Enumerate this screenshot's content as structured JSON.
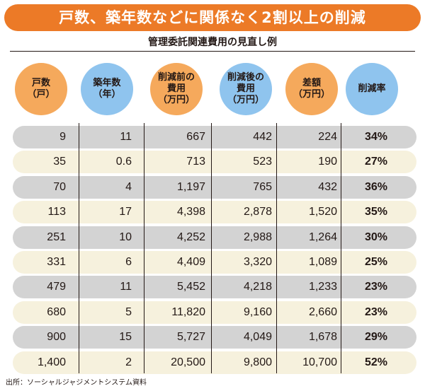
{
  "title": "戸数、築年数などに関係なく2割以上の削減",
  "subtitle": "管理委託関連費用の見直し例",
  "source": "出所：ソーシャルジャジメントシステム資料",
  "colors": {
    "accent": "#ec7a27",
    "orange_circle": "#f5a95c",
    "blue_circle": "#8fc4ee",
    "row_gray": "#d3d3d3",
    "row_cream": "#f6f1dd"
  },
  "chart_data": {
    "type": "table",
    "title": "戸数、築年数などに関係なく2割以上の削減",
    "subtitle": "管理委託関連費用の見直し例",
    "columns": [
      "戸数\n（戸）",
      "築年数\n（年）",
      "削減前の\n費用\n（万円）",
      "削減後の\n費用\n（万円）",
      "差額\n（万円）",
      "削減率"
    ],
    "rows": [
      [
        "9",
        "11",
        "667",
        "442",
        "224",
        "34%"
      ],
      [
        "35",
        "0.6",
        "713",
        "523",
        "190",
        "27%"
      ],
      [
        "70",
        "4",
        "1,197",
        "765",
        "432",
        "36%"
      ],
      [
        "113",
        "17",
        "4,398",
        "2,878",
        "1,520",
        "35%"
      ],
      [
        "251",
        "10",
        "4,252",
        "2,988",
        "1,264",
        "30%"
      ],
      [
        "331",
        "6",
        "4,409",
        "3,320",
        "1,089",
        "25%"
      ],
      [
        "479",
        "11",
        "5,452",
        "4,218",
        "1,233",
        "23%"
      ],
      [
        "680",
        "5",
        "11,820",
        "9,160",
        "2,660",
        "23%"
      ],
      [
        "900",
        "15",
        "5,727",
        "4,049",
        "1,678",
        "29%"
      ],
      [
        "1,400",
        "2",
        "20,500",
        "9,800",
        "10,700",
        "52%"
      ]
    ],
    "source": "出所：ソーシャルジャジメントシステム資料"
  }
}
